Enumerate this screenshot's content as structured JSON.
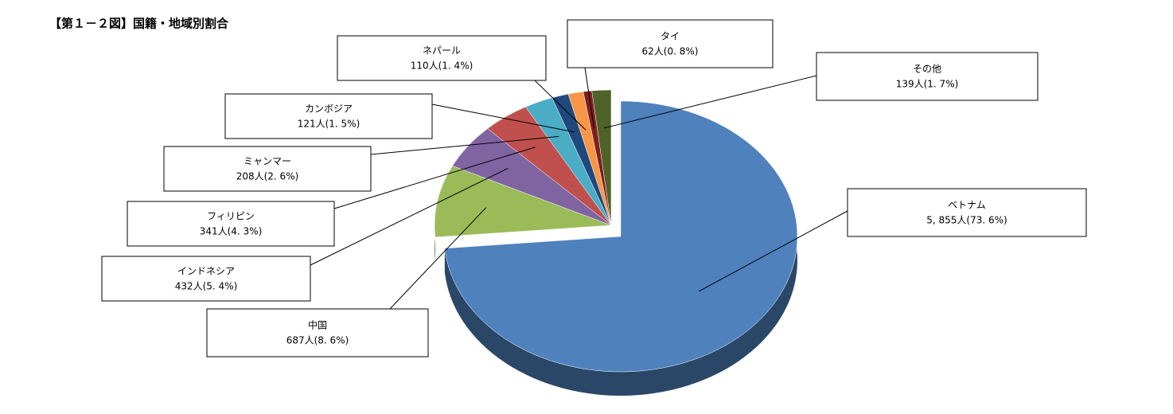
{
  "chart_data": {
    "type": "pie",
    "title": "【第１－２図】国籍・地域別割合",
    "categories": [
      "ベトナム",
      "中国",
      "インドネシア",
      "フィリピン",
      "ミャンマー",
      "カンボジア",
      "ネパール",
      "タイ",
      "その他"
    ],
    "values": [
      5855,
      687,
      432,
      341,
      208,
      121,
      110,
      62,
      139
    ],
    "value_labels": [
      "5, 855人(73. 6%)",
      "687人(8. 6%)",
      "432人(5. 4%)",
      "341人(4. 3%)",
      "208人(2. 6%)",
      "121人(1. 5%)",
      "110人(1. 4%)",
      "62人(0. 8%)",
      "139人(1. 7%)"
    ],
    "colors": [
      "#4f81bd",
      "#9bbb59",
      "#8064a2",
      "#c0504d",
      "#4bacc6",
      "#1f497d",
      "#f79646",
      "#7f1f1f",
      "#4f6228"
    ]
  }
}
